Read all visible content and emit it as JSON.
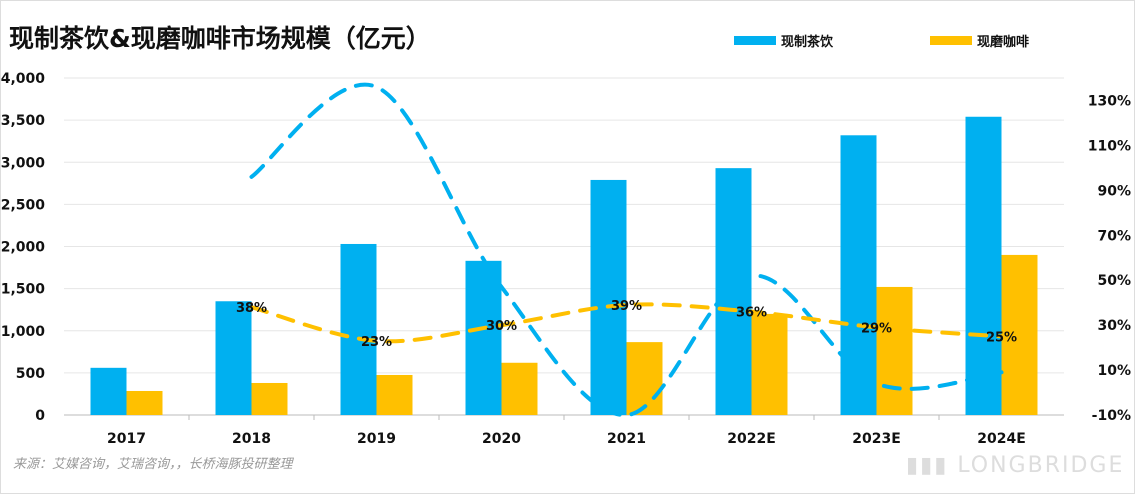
{
  "chart_data": {
    "type": "bar",
    "title": "现制茶饮&现磨咖啡市场规模（亿元）",
    "categories": [
      "2017",
      "2018",
      "2019",
      "2020",
      "2021",
      "2022E",
      "2023E",
      "2024E"
    ],
    "series": [
      {
        "name": "现制茶饮",
        "axis": "left",
        "color": "#00B0F0",
        "values": [
          560,
          1350,
          2030,
          1830,
          2790,
          2930,
          3320,
          3540
        ]
      },
      {
        "name": "现磨咖啡",
        "axis": "left",
        "color": "#FFC000",
        "values": [
          285,
          380,
          475,
          620,
          865,
          1200,
          1520,
          1900
        ]
      }
    ],
    "growth_lines": [
      {
        "series": "现制茶饮",
        "style": "dashed",
        "color": "#00B0F0",
        "categories": [
          "2018",
          "2019",
          "2020",
          "2021",
          "2022E",
          "2023E",
          "2024E"
        ],
        "values": [
          96,
          136,
          47,
          -10,
          52,
          4,
          9
        ]
      },
      {
        "series": "现磨咖啡",
        "style": "dashed",
        "color": "#FFC000",
        "categories": [
          "2018",
          "2019",
          "2020",
          "2021",
          "2022E",
          "2023E",
          "2024E"
        ],
        "values": [
          38,
          23,
          30,
          39,
          36,
          29,
          25
        ],
        "labels": [
          "38%",
          "23%",
          "30%",
          "39%",
          "36%",
          "29%",
          "25%"
        ]
      }
    ],
    "left_axis": {
      "range": [
        0,
        4000
      ],
      "ticks": [
        "0",
        "500",
        "1,000",
        "1,500",
        "2,000",
        "2,500",
        "3,000",
        "3,500",
        "4,000"
      ]
    },
    "right_axis": {
      "range": [
        -10,
        140
      ],
      "ticks": [
        "-10%",
        "10%",
        "30%",
        "50%",
        "70%",
        "90%",
        "110%",
        "130%"
      ]
    },
    "grid": true,
    "legend": "top-right"
  },
  "source": "来源：艾媒咨询，艾瑞咨询，，长桥海豚投研整理",
  "watermark": "LONGBRIDGE"
}
